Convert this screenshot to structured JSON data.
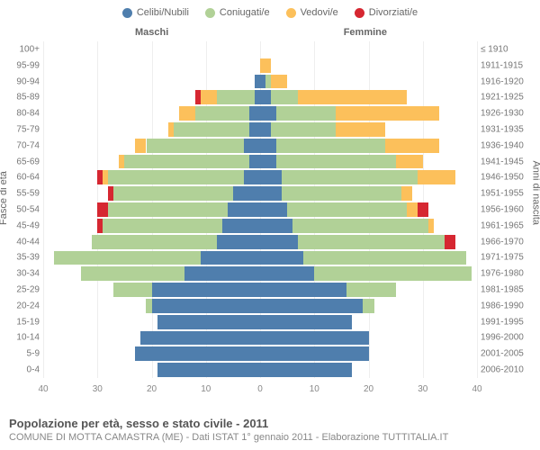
{
  "type": "population-pyramid",
  "colors": {
    "celibi": "#4f7ead",
    "coniugati": "#b1d197",
    "vedovi": "#fcc05b",
    "divorziati": "#d62731",
    "grid": "#eeeeee",
    "center": "#999999",
    "bg": "#ffffff",
    "text": "#666666"
  },
  "legend": [
    {
      "label": "Celibi/Nubili",
      "key": "celibi"
    },
    {
      "label": "Coniugati/e",
      "key": "coniugati"
    },
    {
      "label": "Vedovi/e",
      "key": "vedovi"
    },
    {
      "label": "Divorziati/e",
      "key": "divorziati"
    }
  ],
  "side_labels": {
    "left": "Maschi",
    "right": "Femmine"
  },
  "axis_titles": {
    "left": "Fasce di età",
    "right": "Anni di nascita"
  },
  "x": {
    "max": 40,
    "ticks": [
      40,
      20,
      0,
      20,
      40
    ]
  },
  "title": "Popolazione per età, sesso e stato civile - 2011",
  "subtitle": "COMUNE DI MOTTA CAMASTRA (ME) - Dati ISTAT 1° gennaio 2011 - Elaborazione TUTTITALIA.IT",
  "rows": [
    {
      "age": "100+",
      "birth": "≤ 1910",
      "m": {
        "c": 0,
        "co": 0,
        "v": 0,
        "d": 0
      },
      "f": {
        "c": 0,
        "co": 0,
        "v": 0,
        "d": 0
      }
    },
    {
      "age": "95-99",
      "birth": "1911-1915",
      "m": {
        "c": 0,
        "co": 0,
        "v": 0,
        "d": 0
      },
      "f": {
        "c": 0,
        "co": 0,
        "v": 2,
        "d": 0
      }
    },
    {
      "age": "90-94",
      "birth": "1916-1920",
      "m": {
        "c": 1,
        "co": 0,
        "v": 0,
        "d": 0
      },
      "f": {
        "c": 1,
        "co": 1,
        "v": 3,
        "d": 0
      }
    },
    {
      "age": "85-89",
      "birth": "1921-1925",
      "m": {
        "c": 1,
        "co": 7,
        "v": 3,
        "d": 1
      },
      "f": {
        "c": 2,
        "co": 5,
        "v": 20,
        "d": 0
      }
    },
    {
      "age": "80-84",
      "birth": "1926-1930",
      "m": {
        "c": 2,
        "co": 10,
        "v": 3,
        "d": 0
      },
      "f": {
        "c": 3,
        "co": 11,
        "v": 19,
        "d": 0
      }
    },
    {
      "age": "75-79",
      "birth": "1931-1935",
      "m": {
        "c": 2,
        "co": 14,
        "v": 1,
        "d": 0
      },
      "f": {
        "c": 2,
        "co": 12,
        "v": 9,
        "d": 0
      }
    },
    {
      "age": "70-74",
      "birth": "1936-1940",
      "m": {
        "c": 3,
        "co": 18,
        "v": 2,
        "d": 0
      },
      "f": {
        "c": 3,
        "co": 20,
        "v": 10,
        "d": 0
      }
    },
    {
      "age": "65-69",
      "birth": "1941-1945",
      "m": {
        "c": 2,
        "co": 23,
        "v": 1,
        "d": 0
      },
      "f": {
        "c": 3,
        "co": 22,
        "v": 5,
        "d": 0
      }
    },
    {
      "age": "60-64",
      "birth": "1946-1950",
      "m": {
        "c": 3,
        "co": 25,
        "v": 1,
        "d": 1
      },
      "f": {
        "c": 4,
        "co": 25,
        "v": 7,
        "d": 0
      }
    },
    {
      "age": "55-59",
      "birth": "1951-1955",
      "m": {
        "c": 5,
        "co": 22,
        "v": 0,
        "d": 1
      },
      "f": {
        "c": 4,
        "co": 22,
        "v": 2,
        "d": 0
      }
    },
    {
      "age": "50-54",
      "birth": "1956-1960",
      "m": {
        "c": 6,
        "co": 22,
        "v": 0,
        "d": 2
      },
      "f": {
        "c": 5,
        "co": 22,
        "v": 2,
        "d": 2
      }
    },
    {
      "age": "45-49",
      "birth": "1961-1965",
      "m": {
        "c": 7,
        "co": 22,
        "v": 0,
        "d": 1
      },
      "f": {
        "c": 6,
        "co": 25,
        "v": 1,
        "d": 0
      }
    },
    {
      "age": "40-44",
      "birth": "1966-1970",
      "m": {
        "c": 8,
        "co": 23,
        "v": 0,
        "d": 0
      },
      "f": {
        "c": 7,
        "co": 27,
        "v": 0,
        "d": 2
      }
    },
    {
      "age": "35-39",
      "birth": "1971-1975",
      "m": {
        "c": 11,
        "co": 27,
        "v": 0,
        "d": 0
      },
      "f": {
        "c": 8,
        "co": 30,
        "v": 0,
        "d": 0
      }
    },
    {
      "age": "30-34",
      "birth": "1976-1980",
      "m": {
        "c": 14,
        "co": 19,
        "v": 0,
        "d": 0
      },
      "f": {
        "c": 10,
        "co": 29,
        "v": 0,
        "d": 0
      }
    },
    {
      "age": "25-29",
      "birth": "1981-1985",
      "m": {
        "c": 20,
        "co": 7,
        "v": 0,
        "d": 0
      },
      "f": {
        "c": 16,
        "co": 9,
        "v": 0,
        "d": 0
      }
    },
    {
      "age": "20-24",
      "birth": "1986-1990",
      "m": {
        "c": 20,
        "co": 1,
        "v": 0,
        "d": 0
      },
      "f": {
        "c": 19,
        "co": 2,
        "v": 0,
        "d": 0
      }
    },
    {
      "age": "15-19",
      "birth": "1991-1995",
      "m": {
        "c": 19,
        "co": 0,
        "v": 0,
        "d": 0
      },
      "f": {
        "c": 17,
        "co": 0,
        "v": 0,
        "d": 0
      }
    },
    {
      "age": "10-14",
      "birth": "1996-2000",
      "m": {
        "c": 22,
        "co": 0,
        "v": 0,
        "d": 0
      },
      "f": {
        "c": 20,
        "co": 0,
        "v": 0,
        "d": 0
      }
    },
    {
      "age": "5-9",
      "birth": "2001-2005",
      "m": {
        "c": 23,
        "co": 0,
        "v": 0,
        "d": 0
      },
      "f": {
        "c": 20,
        "co": 0,
        "v": 0,
        "d": 0
      }
    },
    {
      "age": "0-4",
      "birth": "2006-2010",
      "m": {
        "c": 19,
        "co": 0,
        "v": 0,
        "d": 0
      },
      "f": {
        "c": 17,
        "co": 0,
        "v": 0,
        "d": 0
      }
    }
  ]
}
